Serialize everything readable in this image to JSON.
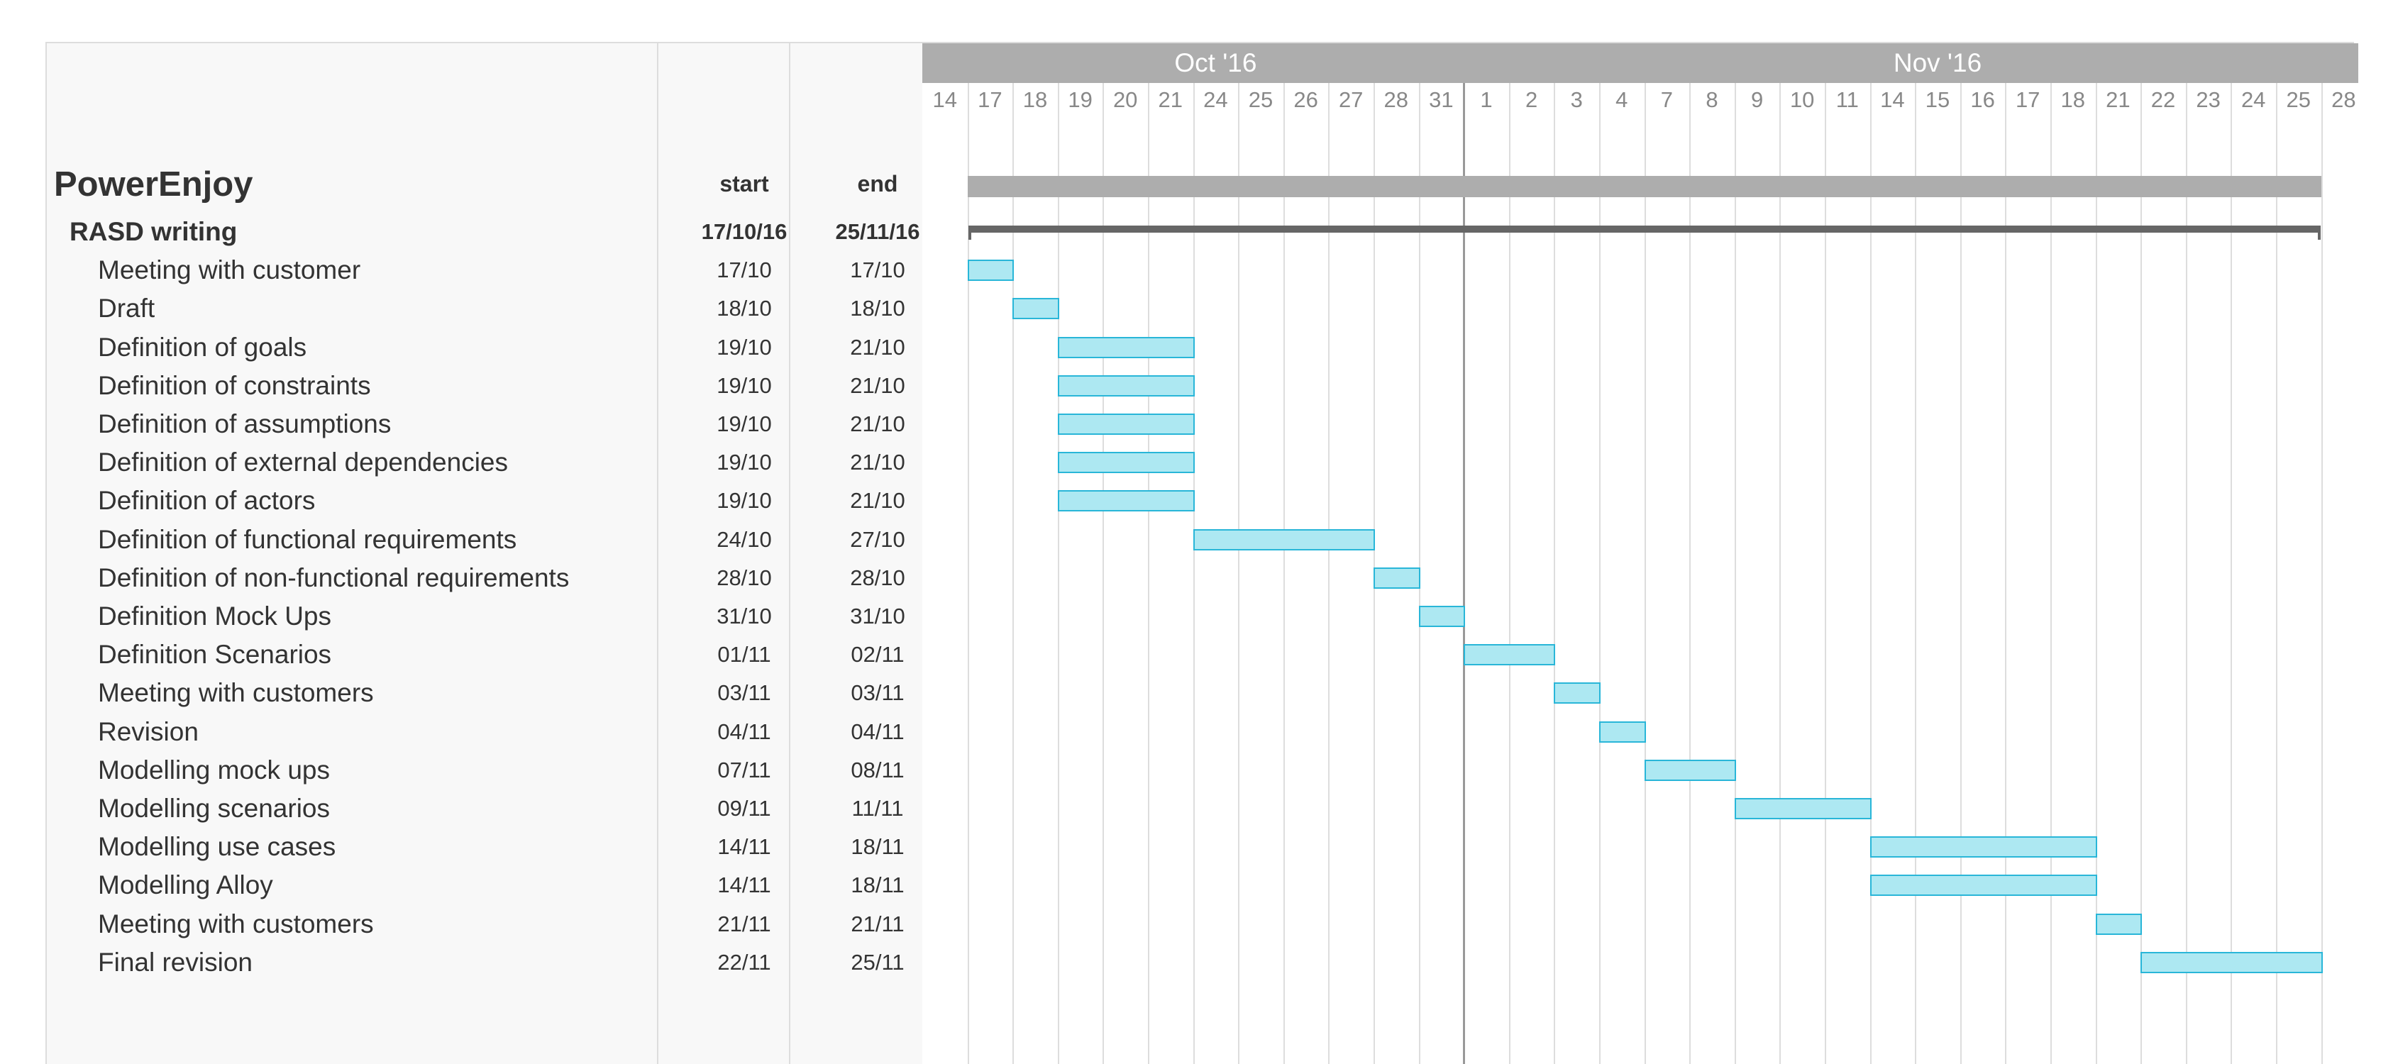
{
  "project": {
    "title": "PowerEnjoy"
  },
  "columns": {
    "start": "start",
    "end": "end"
  },
  "timeline": {
    "months": [
      {
        "label": "Oct '16",
        "from": 0,
        "to": 13
      },
      {
        "label": "Nov '16",
        "from": 13,
        "to": 32
      }
    ],
    "days": [
      "14",
      "17",
      "18",
      "19",
      "20",
      "21",
      "24",
      "25",
      "26",
      "27",
      "28",
      "31",
      "1",
      "2",
      "3",
      "4",
      "7",
      "8",
      "9",
      "10",
      "11",
      "14",
      "15",
      "16",
      "17",
      "18",
      "21",
      "22",
      "23",
      "24",
      "25",
      "28"
    ],
    "today_index": 12
  },
  "group": {
    "name": "RASD writing",
    "start": "17/10/16",
    "end": "25/11/16",
    "from": 1,
    "to": 31
  },
  "tasks": [
    {
      "name": "Meeting with customer",
      "start": "17/10",
      "end": "17/10",
      "from": 1,
      "to": 2
    },
    {
      "name": "Draft",
      "start": "18/10",
      "end": "18/10",
      "from": 2,
      "to": 3
    },
    {
      "name": "Definition of goals",
      "start": "19/10",
      "end": "21/10",
      "from": 3,
      "to": 6
    },
    {
      "name": "Definition of constraints",
      "start": "19/10",
      "end": "21/10",
      "from": 3,
      "to": 6
    },
    {
      "name": "Definition of assumptions",
      "start": "19/10",
      "end": "21/10",
      "from": 3,
      "to": 6
    },
    {
      "name": "Definition of external dependencies",
      "start": "19/10",
      "end": "21/10",
      "from": 3,
      "to": 6
    },
    {
      "name": "Definition of actors",
      "start": "19/10",
      "end": "21/10",
      "from": 3,
      "to": 6
    },
    {
      "name": "Definition of functional requirements",
      "start": "24/10",
      "end": "27/10",
      "from": 6,
      "to": 10
    },
    {
      "name": "Definition of non-functional requirements",
      "start": "28/10",
      "end": "28/10",
      "from": 10,
      "to": 11
    },
    {
      "name": "Definition Mock Ups",
      "start": "31/10",
      "end": "31/10",
      "from": 11,
      "to": 12
    },
    {
      "name": "Definition Scenarios",
      "start": "01/11",
      "end": "02/11",
      "from": 12,
      "to": 14
    },
    {
      "name": "Meeting with customers",
      "start": "03/11",
      "end": "03/11",
      "from": 14,
      "to": 15
    },
    {
      "name": "Revision",
      "start": "04/11",
      "end": "04/11",
      "from": 15,
      "to": 16
    },
    {
      "name": "Modelling mock ups",
      "start": "07/11",
      "end": "08/11",
      "from": 16,
      "to": 18
    },
    {
      "name": "Modelling scenarios",
      "start": "09/11",
      "end": "11/11",
      "from": 18,
      "to": 21
    },
    {
      "name": "Modelling use cases",
      "start": "14/11",
      "end": "18/11",
      "from": 21,
      "to": 26
    },
    {
      "name": "Modelling Alloy",
      "start": "14/11",
      "end": "18/11",
      "from": 21,
      "to": 26
    },
    {
      "name": "Meeting with customers",
      "start": "21/11",
      "end": "21/11",
      "from": 26,
      "to": 27
    },
    {
      "name": "Final revision",
      "start": "22/11",
      "end": "25/11",
      "from": 27,
      "to": 31
    }
  ],
  "colors": {
    "task_bar_fill": "#ade8f2",
    "task_bar_border": "#29b6d8",
    "header_band": "#adadad",
    "group_bracket": "#666666",
    "left_panel": "#f8f8f8"
  }
}
